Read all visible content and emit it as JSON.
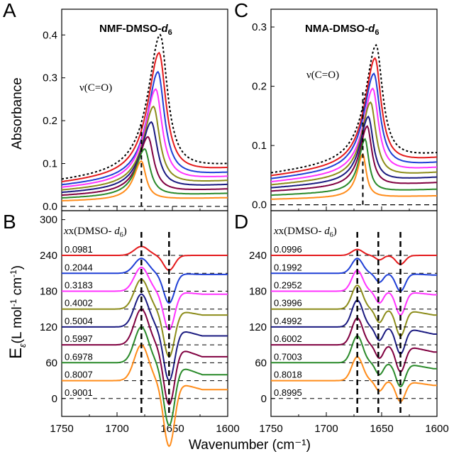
{
  "xlabel_text": "Wavenumber (cm⁻¹)",
  "ylabel_top": "Absorbance",
  "ylabel_bottom": "E",
  "ylabel_bottom_sub": "ε",
  "ylabel_bottom_unit": "(L mol",
  "ylabel_bottom_unit_exp": "-1",
  "ylabel_bottom_unit2": " cm",
  "ylabel_bottom_unit_exp2": "-1",
  "ylabel_bottom_unit_close": ")",
  "colors": [
    "#000000",
    "#e41a1c",
    "#1f3fd6",
    "#ff33ff",
    "#8c8c1a",
    "#1a1a80",
    "#800040",
    "#2a8a2a",
    "#ff8c1a"
  ],
  "x_ticks": [
    "1750",
    "1700",
    "1650",
    "1600"
  ],
  "chart_data": [
    {
      "panel": "A",
      "type": "line",
      "title_main": "NMF-DMSO-",
      "title_sub_italic": "d",
      "title_sub_num": "6",
      "annotation": "ν(C=O)",
      "xlim": [
        1750,
        1600
      ],
      "ylim": [
        -0.01,
        0.46
      ],
      "y_ticks": [
        "0.0",
        "0.1",
        "0.2",
        "0.3",
        "0.4"
      ],
      "peak_marker_x": 1678,
      "series": [
        {
          "center": 1661,
          "width": 19,
          "peak": 0.378,
          "base": 0.095,
          "dashed": true
        },
        {
          "center": 1662,
          "width": 18,
          "peak": 0.338,
          "base": 0.087
        },
        {
          "center": 1663,
          "width": 17,
          "peak": 0.296,
          "base": 0.077
        },
        {
          "center": 1665,
          "width": 17,
          "peak": 0.258,
          "base": 0.068
        },
        {
          "center": 1667,
          "width": 16,
          "peak": 0.22,
          "base": 0.059
        },
        {
          "center": 1669,
          "width": 16,
          "peak": 0.186,
          "base": 0.05
        },
        {
          "center": 1672,
          "width": 15,
          "peak": 0.154,
          "base": 0.04
        },
        {
          "center": 1675,
          "width": 14,
          "peak": 0.128,
          "base": 0.03
        },
        {
          "center": 1678,
          "width": 12,
          "peak": 0.102,
          "base": 0.02
        },
        {
          "center": 1679,
          "width": 10,
          "peak": 0.06,
          "base": 0.008
        }
      ]
    },
    {
      "panel": "B",
      "type": "line",
      "legend_title_pre": "x(DMSO-",
      "legend_title_sub": "d",
      "legend_title_num": "6",
      "legend_title_post": ")",
      "xlim": [
        1750,
        1600
      ],
      "ylim": [
        -30,
        315
      ],
      "y_ticks": [
        "0",
        "60",
        "120",
        "180",
        "240",
        "300"
      ],
      "marker_x": [
        1678,
        1653
      ],
      "labels": [
        "0.0981",
        "0.2044",
        "0.3183",
        "0.4002",
        "0.5004",
        "0.5997",
        "0.6978",
        "0.8007",
        "0.9001"
      ],
      "offsets": [
        240,
        210,
        180,
        150,
        120,
        90,
        60,
        30,
        0
      ],
      "pos_amp": [
        15,
        25,
        40,
        50,
        55,
        60,
        60,
        60,
        45
      ],
      "neg_amp": [
        -25,
        -50,
        -65,
        -80,
        -90,
        -100,
        -105,
        -110,
        -50
      ],
      "tail": [
        0,
        -2,
        -5,
        -10,
        -15,
        -20,
        -20,
        -15,
        -5
      ]
    },
    {
      "panel": "C",
      "type": "line",
      "title_main": "NMA-DMSO-",
      "title_sub_italic": "d",
      "title_sub_num": "6",
      "annotation": "ν(C=O)",
      "xlim": [
        1750,
        1600
      ],
      "ylim": [
        -0.01,
        0.33
      ],
      "y_ticks": [
        "0.0",
        "0.1",
        "0.2",
        "0.3"
      ],
      "peak_marker_x": 1667,
      "series": [
        {
          "center": 1655,
          "width": 17,
          "peak": 0.248,
          "base": 0.085,
          "dashed": true
        },
        {
          "center": 1656,
          "width": 16,
          "peak": 0.228,
          "base": 0.078
        },
        {
          "center": 1657,
          "width": 16,
          "peak": 0.204,
          "base": 0.07
        },
        {
          "center": 1658,
          "width": 15,
          "peak": 0.181,
          "base": 0.062
        },
        {
          "center": 1660,
          "width": 14,
          "peak": 0.16,
          "base": 0.054
        },
        {
          "center": 1662,
          "width": 13,
          "peak": 0.138,
          "base": 0.046
        },
        {
          "center": 1663,
          "width": 12,
          "peak": 0.124,
          "base": 0.037
        },
        {
          "center": 1665,
          "width": 10,
          "peak": 0.105,
          "base": 0.026
        },
        {
          "center": 1667,
          "width": 9,
          "peak": 0.082,
          "base": 0.015
        },
        {
          "center": 1668,
          "width": 7,
          "peak": 0.045,
          "base": 0.005
        }
      ]
    },
    {
      "panel": "D",
      "type": "line",
      "legend_title_pre": "x(DMSO-",
      "legend_title_sub": "d",
      "legend_title_num": "6",
      "legend_title_post": ")",
      "xlim": [
        1750,
        1600
      ],
      "ylim": [
        -30,
        315
      ],
      "y_ticks": [
        "0",
        "60",
        "120",
        "180",
        "240"
      ],
      "marker_x": [
        1672,
        1653,
        1633
      ],
      "labels": [
        "0.0996",
        "0.1992",
        "0.2952",
        "0.3996",
        "0.4992",
        "0.6002",
        "0.7003",
        "0.8018",
        "0.8995"
      ],
      "offsets": [
        240,
        210,
        180,
        150,
        120,
        90,
        60,
        30,
        0
      ],
      "pos_amp": [
        10,
        25,
        35,
        40,
        45,
        45,
        45,
        40,
        30
      ],
      "neg_amp": [
        -15,
        -30,
        -40,
        -45,
        -45,
        -45,
        -40,
        -35,
        -20
      ],
      "tail": [
        0,
        -3,
        -6,
        -10,
        -12,
        -12,
        -10,
        -8,
        -3
      ]
    }
  ]
}
